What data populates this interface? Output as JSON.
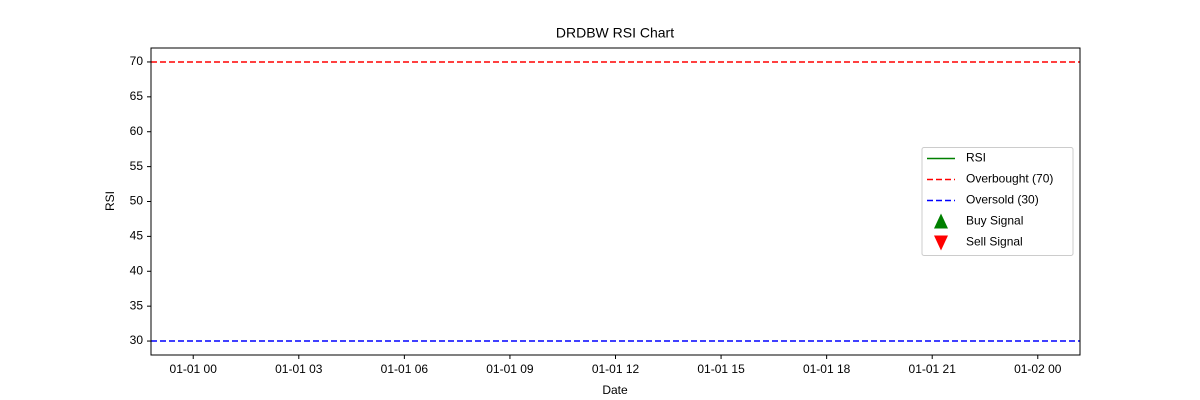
{
  "chart_data": {
    "type": "line",
    "title": "DRDBW RSI Chart",
    "x_label": "Date",
    "y_label": "RSI",
    "x": [],
    "xlim": [
      -1.2,
      25.2
    ],
    "xticks": [
      {
        "value": 0,
        "label": "01-01 00"
      },
      {
        "value": 3,
        "label": "01-01 03"
      },
      {
        "value": 6,
        "label": "01-01 06"
      },
      {
        "value": 9,
        "label": "01-01 09"
      },
      {
        "value": 12,
        "label": "01-01 12"
      },
      {
        "value": 15,
        "label": "01-01 15"
      },
      {
        "value": 18,
        "label": "01-01 18"
      },
      {
        "value": 21,
        "label": "01-01 21"
      },
      {
        "value": 24,
        "label": "01-02 00"
      }
    ],
    "ylim": [
      28,
      72
    ],
    "yticks": [
      30,
      35,
      40,
      45,
      50,
      55,
      60,
      65,
      70
    ],
    "grid": false,
    "legend": "center right",
    "series": [
      {
        "name": "RSI",
        "color": "green",
        "kind": "line",
        "dash": "solid",
        "values": []
      },
      {
        "name": "Overbought (70)",
        "color": "red",
        "kind": "hline",
        "dash": "dashed",
        "value": 70
      },
      {
        "name": "Oversold (30)",
        "color": "blue",
        "kind": "hline",
        "dash": "dashed",
        "value": 30
      },
      {
        "name": "Buy Signal",
        "color": "green",
        "kind": "marker",
        "marker": "^",
        "values": []
      },
      {
        "name": "Sell Signal",
        "color": "red",
        "kind": "marker",
        "marker": "v",
        "values": []
      }
    ]
  }
}
